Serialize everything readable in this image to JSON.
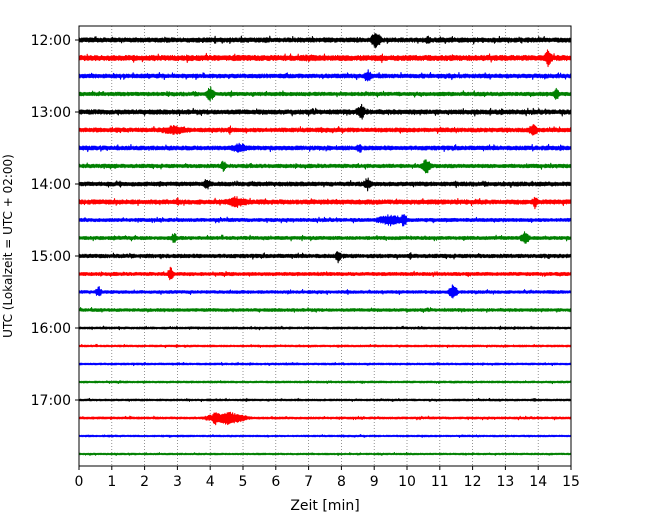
{
  "chart_data": {
    "type": "line",
    "title": "",
    "xlabel": "Zeit  [min]",
    "ylabel": "UTC (Lokalzeit = UTC + 02:00)",
    "xlim": [
      0,
      15
    ],
    "x_ticks": [
      "0",
      "1",
      "2",
      "3",
      "4",
      "5",
      "6",
      "7",
      "8",
      "9",
      "10",
      "11",
      "12",
      "13",
      "14",
      "15"
    ],
    "y_tick_labels": [
      "12:00",
      "13:00",
      "14:00",
      "15:00",
      "16:00",
      "17:00"
    ],
    "grid": "vertical dotted",
    "trace_interval_min": 15,
    "trace_colors": [
      "#000000",
      "#ff0000",
      "#0000ff",
      "#008000"
    ],
    "traces": [
      {
        "start": "12:00",
        "amplitude": 2.2,
        "events": [
          {
            "min": 9.05,
            "amp": 9,
            "dur": 0.25
          },
          {
            "min": 10.65,
            "amp": 5,
            "dur": 0.15
          }
        ]
      },
      {
        "start": "12:15",
        "amplitude": 2.6,
        "events": [
          {
            "min": 3.3,
            "amp": 5,
            "dur": 0.1
          },
          {
            "min": 7.0,
            "amp": 4,
            "dur": 0.6
          },
          {
            "min": 14.3,
            "amp": 9,
            "dur": 0.2
          }
        ]
      },
      {
        "start": "12:30",
        "amplitude": 2.0,
        "events": [
          {
            "min": 8.8,
            "amp": 7,
            "dur": 0.2
          }
        ]
      },
      {
        "start": "12:45",
        "amplitude": 1.8,
        "events": [
          {
            "min": 4.0,
            "amp": 8,
            "dur": 0.2
          },
          {
            "min": 14.55,
            "amp": 7,
            "dur": 0.15
          }
        ]
      },
      {
        "start": "13:00",
        "amplitude": 2.2,
        "events": [
          {
            "min": 8.6,
            "amp": 9,
            "dur": 0.2
          },
          {
            "min": 12.9,
            "amp": 4,
            "dur": 0.1
          }
        ]
      },
      {
        "start": "13:15",
        "amplitude": 2.0,
        "events": [
          {
            "min": 2.9,
            "amp": 5,
            "dur": 0.8
          },
          {
            "min": 4.6,
            "amp": 5,
            "dur": 0.1
          },
          {
            "min": 13.85,
            "amp": 8,
            "dur": 0.2
          }
        ]
      },
      {
        "start": "13:30",
        "amplitude": 2.0,
        "events": [
          {
            "min": 4.9,
            "amp": 5,
            "dur": 0.5
          },
          {
            "min": 8.55,
            "amp": 6,
            "dur": 0.15
          }
        ]
      },
      {
        "start": "13:45",
        "amplitude": 1.8,
        "events": [
          {
            "min": 4.4,
            "amp": 6,
            "dur": 0.15
          },
          {
            "min": 10.6,
            "amp": 8,
            "dur": 0.25
          }
        ]
      },
      {
        "start": "14:00",
        "amplitude": 2.0,
        "events": [
          {
            "min": 3.9,
            "amp": 6,
            "dur": 0.2
          },
          {
            "min": 8.8,
            "amp": 7,
            "dur": 0.2
          },
          {
            "min": 11.5,
            "amp": 4,
            "dur": 0.1
          }
        ]
      },
      {
        "start": "14:15",
        "amplitude": 2.2,
        "events": [
          {
            "min": 3.0,
            "amp": 5,
            "dur": 0.1
          },
          {
            "min": 4.8,
            "amp": 6,
            "dur": 0.6
          },
          {
            "min": 13.9,
            "amp": 7,
            "dur": 0.15
          }
        ]
      },
      {
        "start": "14:30",
        "amplitude": 1.6,
        "events": [
          {
            "min": 9.5,
            "amp": 6,
            "dur": 0.7
          },
          {
            "min": 9.9,
            "amp": 8,
            "dur": 0.15
          }
        ]
      },
      {
        "start": "14:45",
        "amplitude": 1.6,
        "events": [
          {
            "min": 2.9,
            "amp": 6,
            "dur": 0.15
          },
          {
            "min": 13.6,
            "amp": 8,
            "dur": 0.2
          }
        ]
      },
      {
        "start": "15:00",
        "amplitude": 1.8,
        "events": [
          {
            "min": 7.9,
            "amp": 7,
            "dur": 0.15
          },
          {
            "min": 10.1,
            "amp": 4,
            "dur": 0.1
          }
        ]
      },
      {
        "start": "15:15",
        "amplitude": 1.6,
        "events": [
          {
            "min": 2.8,
            "amp": 8,
            "dur": 0.15
          }
        ]
      },
      {
        "start": "15:30",
        "amplitude": 1.4,
        "events": [
          {
            "min": 0.6,
            "amp": 6,
            "dur": 0.15
          },
          {
            "min": 11.4,
            "amp": 9,
            "dur": 0.2
          }
        ]
      },
      {
        "start": "15:45",
        "amplitude": 1.4,
        "events": []
      },
      {
        "start": "16:00",
        "amplitude": 1.0,
        "events": []
      },
      {
        "start": "16:15",
        "amplitude": 0.9,
        "events": []
      },
      {
        "start": "16:30",
        "amplitude": 0.9,
        "events": []
      },
      {
        "start": "16:45",
        "amplitude": 0.9,
        "events": []
      },
      {
        "start": "17:00",
        "amplitude": 0.9,
        "events": [
          {
            "min": 13.9,
            "amp": 2,
            "dur": 0.1
          }
        ]
      },
      {
        "start": "17:15",
        "amplitude": 1.0,
        "events": [
          {
            "min": 4.5,
            "amp": 7,
            "dur": 0.9
          },
          {
            "min": 4.15,
            "amp": 8,
            "dur": 0.15
          }
        ]
      },
      {
        "start": "17:30",
        "amplitude": 0.8,
        "events": []
      },
      {
        "start": "17:45",
        "amplitude": 0.8,
        "events": []
      }
    ]
  }
}
